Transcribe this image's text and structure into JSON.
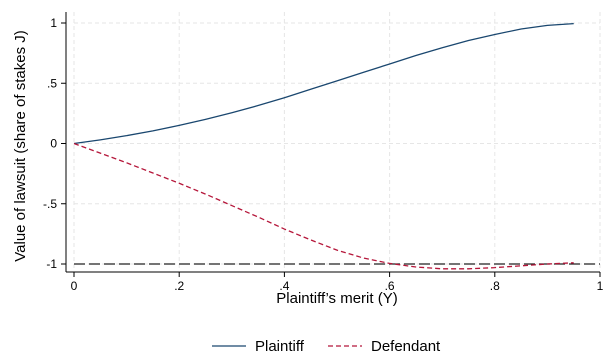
{
  "chart_data": {
    "type": "line",
    "xlabel": "Plaintiff’s merit (Y)",
    "ylabel": "Value of lawsuit (share of stakes J)",
    "xlim": [
      0,
      1
    ],
    "ylim": [
      -1.1,
      1.05
    ],
    "x_ticks": [
      {
        "value": 0,
        "label": "0"
      },
      {
        "value": 0.2,
        "label": ".2"
      },
      {
        "value": 0.4,
        "label": ".4"
      },
      {
        "value": 0.6,
        "label": ".6"
      },
      {
        "value": 0.8,
        "label": ".8"
      },
      {
        "value": 1,
        "label": "1"
      }
    ],
    "y_ticks": [
      {
        "value": -1,
        "label": "-1"
      },
      {
        "value": -0.5,
        "label": "-.5"
      },
      {
        "value": 0,
        "label": "0"
      },
      {
        "value": 0.5,
        "label": ".5"
      },
      {
        "value": 1,
        "label": "1"
      }
    ],
    "grid": true,
    "legend_position": "bottom",
    "reference_line": {
      "y": -1,
      "color": "#222222",
      "style": "long-dash"
    },
    "series": [
      {
        "name": "Plaintiff",
        "color": "#1a476f",
        "style": "solid",
        "x": [
          0,
          0.05,
          0.1,
          0.15,
          0.2,
          0.25,
          0.3,
          0.35,
          0.4,
          0.45,
          0.5,
          0.55,
          0.6,
          0.65,
          0.7,
          0.75,
          0.8,
          0.85,
          0.9,
          0.95
        ],
        "y": [
          0,
          0.03,
          0.065,
          0.105,
          0.15,
          0.2,
          0.255,
          0.315,
          0.38,
          0.45,
          0.52,
          0.59,
          0.66,
          0.73,
          0.795,
          0.855,
          0.905,
          0.95,
          0.98,
          0.995
        ]
      },
      {
        "name": "Defendant",
        "color": "#b5163a",
        "style": "dashed",
        "x": [
          0,
          0.05,
          0.1,
          0.15,
          0.2,
          0.25,
          0.3,
          0.35,
          0.4,
          0.45,
          0.5,
          0.55,
          0.6,
          0.65,
          0.7,
          0.75,
          0.8,
          0.85,
          0.9,
          0.95
        ],
        "y": [
          0,
          -0.08,
          -0.16,
          -0.245,
          -0.33,
          -0.42,
          -0.515,
          -0.61,
          -0.71,
          -0.8,
          -0.885,
          -0.95,
          -0.995,
          -1.025,
          -1.04,
          -1.04,
          -1.03,
          -1.015,
          -1.0,
          -0.99
        ]
      }
    ]
  }
}
